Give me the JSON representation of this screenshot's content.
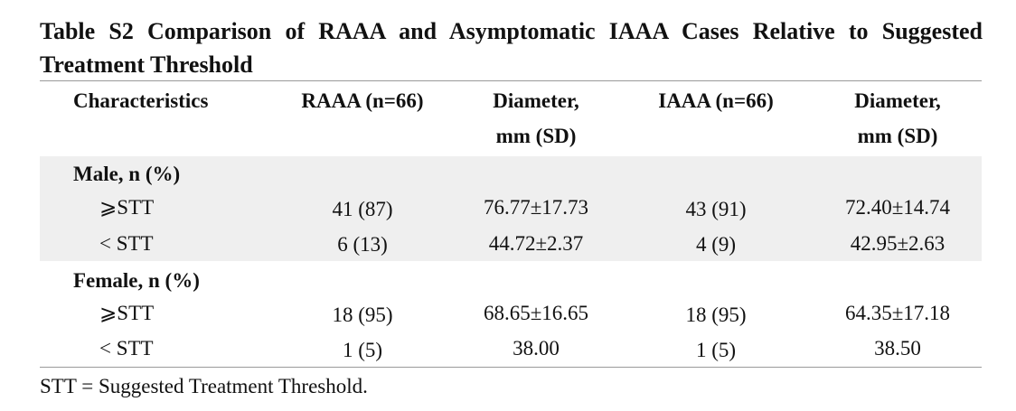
{
  "title": "Table S2 Comparison of RAAA and Asymptomatic IAAA Cases Relative to Suggested Treatment Threshold",
  "table": {
    "headers": {
      "characteristics": "Characteristics",
      "raaa": "RAAA (n=66)",
      "diameter1_line1": "Diameter,",
      "diameter1_line2": "mm (SD)",
      "iaaa": "IAAA (n=66)",
      "diameter2_line1": "Diameter,",
      "diameter2_line2": "mm (SD)"
    },
    "groups": [
      {
        "label": "Male, n (%)",
        "shaded": true,
        "rows": [
          {
            "label": "⩾STT",
            "raaa": "41 (87)",
            "raaa_diameter": "76.77±17.73",
            "iaaa": "43 (91)",
            "iaaa_diameter": "72.40±14.74"
          },
          {
            "label": "< STT",
            "raaa": "6 (13)",
            "raaa_diameter": "44.72±2.37",
            "iaaa": "4 (9)",
            "iaaa_diameter": "42.95±2.63"
          }
        ]
      },
      {
        "label": "Female, n (%)",
        "shaded": false,
        "rows": [
          {
            "label": "⩾STT",
            "raaa": "18 (95)",
            "raaa_diameter": "68.65±16.65",
            "iaaa": "18 (95)",
            "iaaa_diameter": "64.35±17.18"
          },
          {
            "label": "< STT",
            "raaa": "1 (5)",
            "raaa_diameter": "38.00",
            "iaaa": "1 (5)",
            "iaaa_diameter": "38.50"
          }
        ]
      }
    ]
  },
  "footnote": "STT = Suggested Treatment Threshold."
}
